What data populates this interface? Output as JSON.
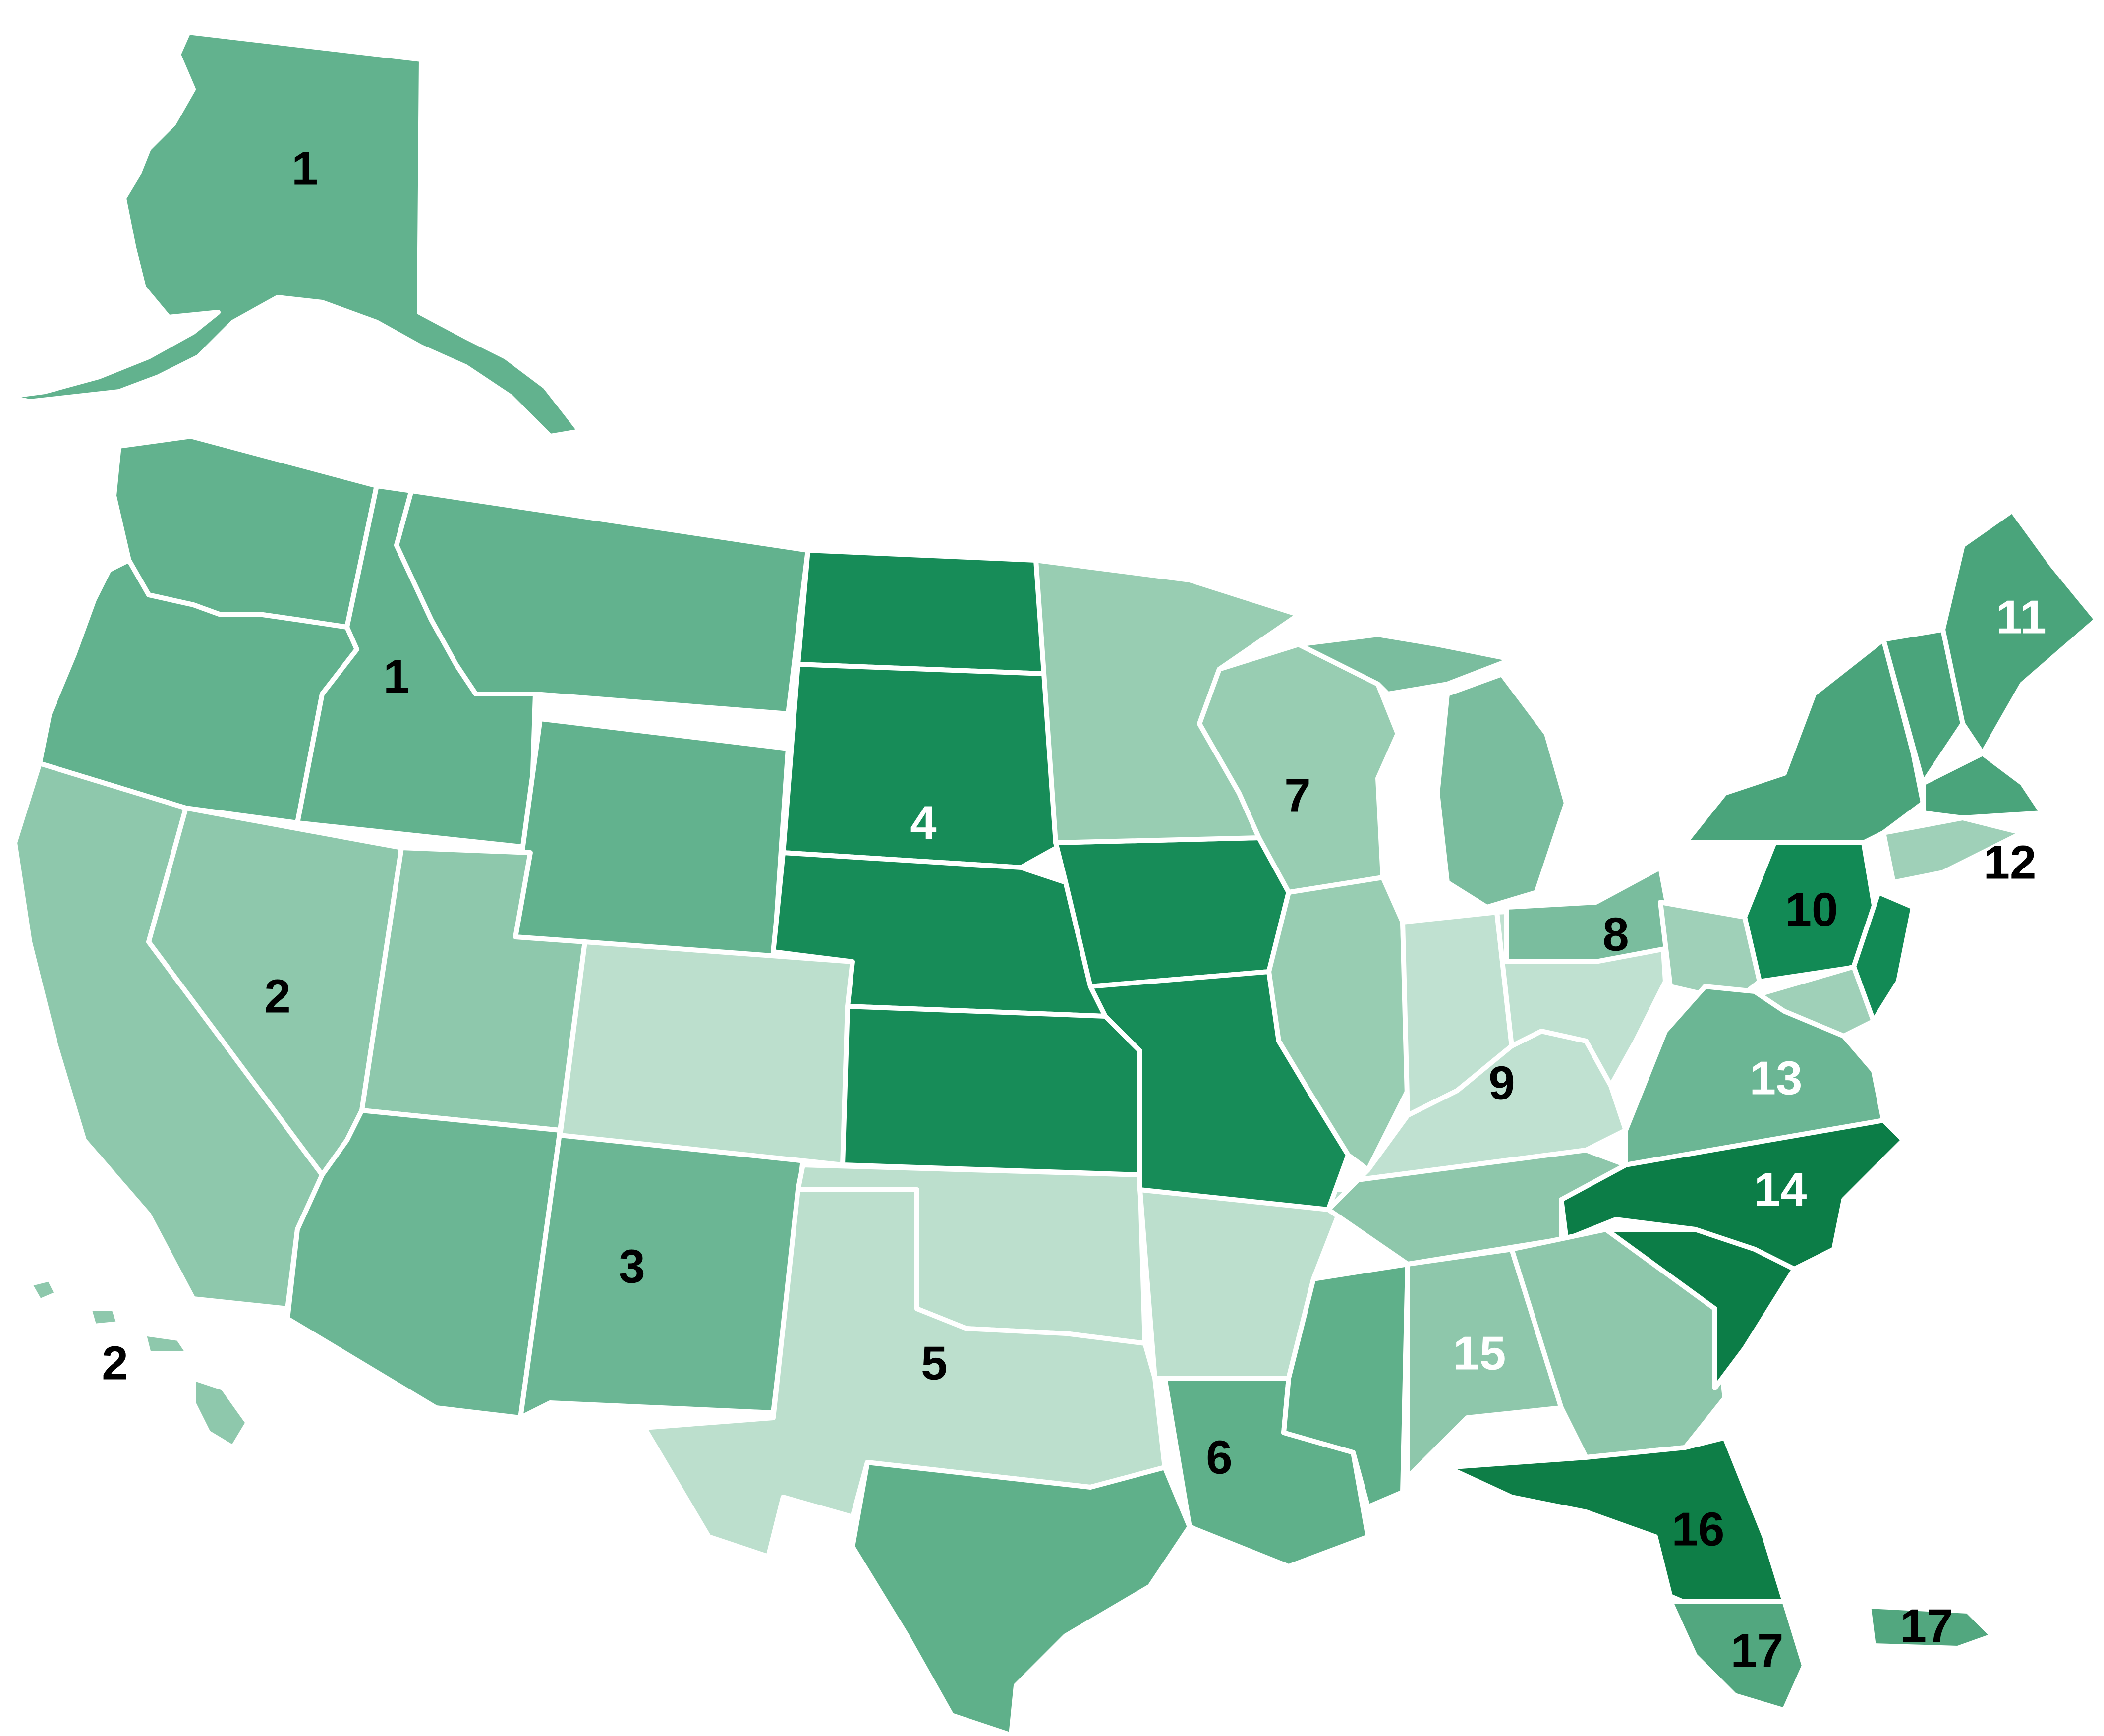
{
  "map": {
    "colors": {
      "background": "#ffffff",
      "border": "#ffffff",
      "label_dark": "#000000",
      "label_light": "#ffffff"
    },
    "regions": [
      {
        "id": "1",
        "label": "1",
        "color": "#62b28e",
        "label_color": "#000000"
      },
      {
        "id": "2",
        "label": "2",
        "color": "#8ec8ac",
        "label_color": "#000000"
      },
      {
        "id": "3",
        "label": "3",
        "color": "#6bb694",
        "label_color": "#000000"
      },
      {
        "id": "4",
        "label": "4",
        "color": "#178c58",
        "label_color": "#ffffff"
      },
      {
        "id": "5",
        "label": "5",
        "color": "#bcdfcd",
        "label_color": "#000000"
      },
      {
        "id": "6",
        "label": "6",
        "color": "#5fb08a",
        "label_color": "#000000"
      },
      {
        "id": "7",
        "label": "7",
        "color": "#98cdb2",
        "label_color": "#000000"
      },
      {
        "id": "8",
        "label": "8",
        "color": "#7abd9e",
        "label_color": "#000000"
      },
      {
        "id": "9",
        "label": "9",
        "color": "#c0e1d1",
        "label_color": "#000000"
      },
      {
        "id": "10",
        "label": "10",
        "color": "#128a55",
        "label_color": "#000000"
      },
      {
        "id": "11",
        "label": "11",
        "color": "#4aa47b",
        "label_color": "#ffffff"
      },
      {
        "id": "12",
        "label": "12",
        "color": "#9fd0b8",
        "label_color": "#000000"
      },
      {
        "id": "13",
        "label": "13",
        "color": "#6bb694",
        "label_color": "#ffffff"
      },
      {
        "id": "14",
        "label": "14",
        "color": "#0c7d47",
        "label_color": "#ffffff"
      },
      {
        "id": "15",
        "label": "15",
        "color": "#8ec7ab",
        "label_color": "#ffffff"
      },
      {
        "id": "16",
        "label": "16",
        "color": "#0e7e47",
        "label_color": "#000000"
      },
      {
        "id": "17",
        "label": "17",
        "color": "#52a77f",
        "label_color": "#000000"
      }
    ]
  }
}
